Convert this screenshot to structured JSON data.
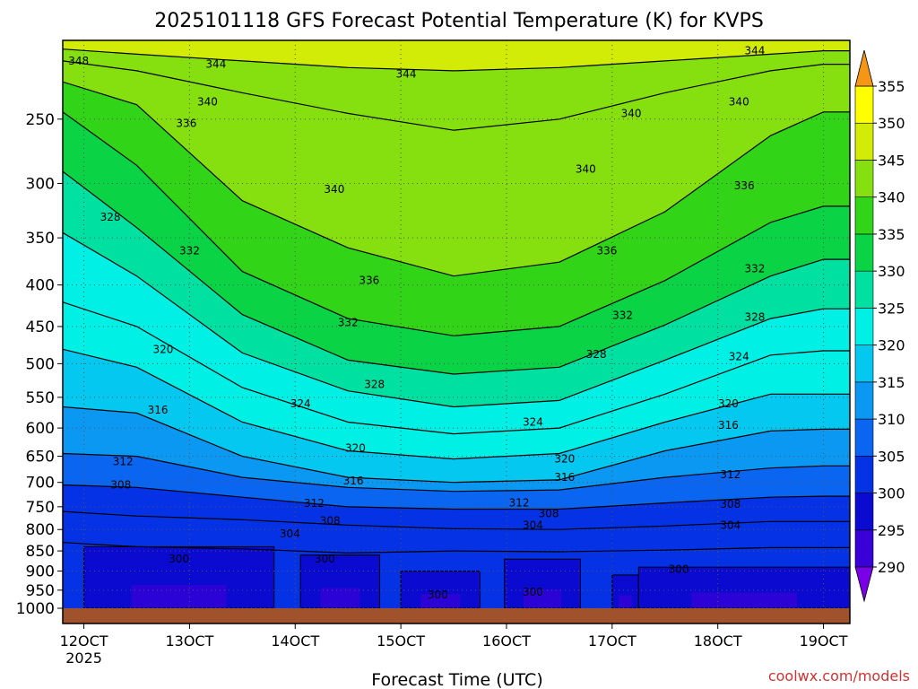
{
  "chart_data": {
    "type": "heatmap",
    "title": "2025101118 GFS Forecast Potential Temperature (K) for KVPS",
    "xlabel": "Forecast Time (UTC)",
    "ylabel": "",
    "source": "coolwx.com/models",
    "x_range": [
      11.8,
      19.25
    ],
    "y_scale": "log",
    "y_range_hpa": [
      1000,
      200
    ],
    "x_ticks": [
      {
        "value": 12,
        "label": "12OCT",
        "sublabel": "2025"
      },
      {
        "value": 13,
        "label": "13OCT"
      },
      {
        "value": 14,
        "label": "14OCT"
      },
      {
        "value": 15,
        "label": "15OCT"
      },
      {
        "value": 16,
        "label": "16OCT"
      },
      {
        "value": 17,
        "label": "17OCT"
      },
      {
        "value": 18,
        "label": "18OCT"
      },
      {
        "value": 19,
        "label": "19OCT"
      }
    ],
    "y_ticks": [
      {
        "value": 250,
        "label": "250"
      },
      {
        "value": 300,
        "label": "300"
      },
      {
        "value": 350,
        "label": "350"
      },
      {
        "value": 400,
        "label": "400"
      },
      {
        "value": 450,
        "label": "450"
      },
      {
        "value": 500,
        "label": "500"
      },
      {
        "value": 550,
        "label": "550"
      },
      {
        "value": 600,
        "label": "600"
      },
      {
        "value": 650,
        "label": "650"
      },
      {
        "value": 700,
        "label": "700"
      },
      {
        "value": 750,
        "label": "750"
      },
      {
        "value": 800,
        "label": "800"
      },
      {
        "value": 850,
        "label": "850"
      },
      {
        "value": 900,
        "label": "900"
      },
      {
        "value": 950,
        "label": "950"
      },
      {
        "value": 1000,
        "label": "1000"
      }
    ],
    "colorbar": {
      "levels": [
        290,
        295,
        300,
        305,
        310,
        315,
        320,
        325,
        330,
        335,
        340,
        345,
        350,
        355
      ],
      "labels": [
        "290",
        "295",
        "300",
        "305",
        "310",
        "315",
        "320",
        "325",
        "330",
        "335",
        "340",
        "345",
        "350",
        "355"
      ],
      "colors": [
        "#7a00e8",
        "#3a00d8",
        "#0a0ad0",
        "#0632e6",
        "#0a66f0",
        "#0a98f2",
        "#05c8f0",
        "#00f0e6",
        "#00e0a0",
        "#0ad446",
        "#32d418",
        "#86e010",
        "#d2ec08",
        "#ffff00",
        "#ffd200",
        "#f59614"
      ],
      "extend": "both"
    },
    "isentropes": [
      {
        "theta": 300,
        "pressure_hpa": [
          830,
          840,
          845,
          855,
          850,
          852,
          848,
          842,
          842,
          842
        ]
      },
      {
        "theta": 304,
        "pressure_hpa": [
          760,
          770,
          778,
          790,
          798,
          800,
          792,
          782,
          782,
          782
        ]
      },
      {
        "theta": 308,
        "pressure_hpa": [
          705,
          710,
          730,
          750,
          755,
          755,
          742,
          730,
          728,
          728
        ]
      },
      {
        "theta": 312,
        "pressure_hpa": [
          645,
          650,
          690,
          710,
          718,
          715,
          690,
          672,
          668,
          668
        ]
      },
      {
        "theta": 316,
        "pressure_hpa": [
          565,
          575,
          650,
          690,
          700,
          695,
          640,
          605,
          602,
          602
        ]
      },
      {
        "theta": 320,
        "pressure_hpa": [
          480,
          505,
          590,
          640,
          655,
          645,
          590,
          545,
          545,
          545
        ]
      },
      {
        "theta": 324,
        "pressure_hpa": [
          420,
          450,
          535,
          590,
          610,
          600,
          545,
          488,
          482,
          482
        ]
      },
      {
        "theta": 328,
        "pressure_hpa": [
          345,
          390,
          485,
          540,
          565,
          555,
          495,
          440,
          428,
          428
        ]
      },
      {
        "theta": 332,
        "pressure_hpa": [
          290,
          340,
          435,
          495,
          515,
          505,
          448,
          390,
          372,
          372
        ]
      },
      {
        "theta": 336,
        "pressure_hpa": [
          245,
          285,
          385,
          440,
          462,
          450,
          395,
          335,
          320,
          320
        ]
      },
      {
        "theta": 340,
        "pressure_hpa": [
          225,
          240,
          315,
          360,
          390,
          375,
          325,
          262,
          245,
          245
        ]
      },
      {
        "theta": 344,
        "pressure_hpa": [
          212,
          218,
          232,
          246,
          258,
          250,
          232,
          218,
          214,
          214
        ]
      },
      {
        "theta": 348,
        "pressure_hpa": [
          205,
          208,
          212,
          216,
          218,
          216,
          212,
          208,
          206,
          206
        ]
      }
    ],
    "isentrope_times": [
      11.8,
      12.5,
      13.5,
      14.5,
      15.5,
      16.5,
      17.5,
      18.5,
      19.0,
      19.25
    ],
    "contour_labels": [
      {
        "text": "348",
        "x": 11.95,
        "p": 212
      },
      {
        "text": "344",
        "x": 13.25,
        "p": 214
      },
      {
        "text": "344",
        "x": 15.05,
        "p": 220
      },
      {
        "text": "344",
        "x": 18.35,
        "p": 206
      },
      {
        "text": "340",
        "x": 13.17,
        "p": 238
      },
      {
        "text": "336",
        "x": 12.97,
        "p": 253
      },
      {
        "text": "340",
        "x": 17.18,
        "p": 246
      },
      {
        "text": "340",
        "x": 18.2,
        "p": 238
      },
      {
        "text": "340",
        "x": 16.75,
        "p": 288
      },
      {
        "text": "340",
        "x": 14.37,
        "p": 305
      },
      {
        "text": "336",
        "x": 18.25,
        "p": 302
      },
      {
        "text": "328",
        "x": 12.25,
        "p": 330
      },
      {
        "text": "332",
        "x": 13.0,
        "p": 363
      },
      {
        "text": "336",
        "x": 16.95,
        "p": 363
      },
      {
        "text": "336",
        "x": 14.7,
        "p": 395
      },
      {
        "text": "332",
        "x": 18.35,
        "p": 382
      },
      {
        "text": "332",
        "x": 14.5,
        "p": 445
      },
      {
        "text": "332",
        "x": 17.1,
        "p": 436
      },
      {
        "text": "328",
        "x": 18.35,
        "p": 438
      },
      {
        "text": "320",
        "x": 12.75,
        "p": 480
      },
      {
        "text": "328",
        "x": 16.85,
        "p": 487
      },
      {
        "text": "324",
        "x": 18.2,
        "p": 490
      },
      {
        "text": "328",
        "x": 14.75,
        "p": 530
      },
      {
        "text": "324",
        "x": 14.05,
        "p": 560
      },
      {
        "text": "316",
        "x": 12.7,
        "p": 570
      },
      {
        "text": "320",
        "x": 18.1,
        "p": 560
      },
      {
        "text": "324",
        "x": 16.25,
        "p": 590
      },
      {
        "text": "316",
        "x": 18.1,
        "p": 595
      },
      {
        "text": "320",
        "x": 14.57,
        "p": 635
      },
      {
        "text": "320",
        "x": 16.55,
        "p": 655
      },
      {
        "text": "312",
        "x": 12.37,
        "p": 660
      },
      {
        "text": "316",
        "x": 14.55,
        "p": 697
      },
      {
        "text": "316",
        "x": 16.55,
        "p": 690
      },
      {
        "text": "312",
        "x": 18.12,
        "p": 685
      },
      {
        "text": "308",
        "x": 12.35,
        "p": 705
      },
      {
        "text": "312",
        "x": 14.18,
        "p": 743
      },
      {
        "text": "312",
        "x": 16.12,
        "p": 742
      },
      {
        "text": "308",
        "x": 16.4,
        "p": 765
      },
      {
        "text": "308",
        "x": 18.12,
        "p": 745
      },
      {
        "text": "308",
        "x": 14.33,
        "p": 780
      },
      {
        "text": "304",
        "x": 16.25,
        "p": 790
      },
      {
        "text": "304",
        "x": 18.12,
        "p": 790
      },
      {
        "text": "304",
        "x": 13.95,
        "p": 810
      },
      {
        "text": "300",
        "x": 12.9,
        "p": 870
      },
      {
        "text": "300",
        "x": 14.28,
        "p": 870
      },
      {
        "text": "300",
        "x": 17.63,
        "p": 895
      },
      {
        "text": "300",
        "x": 15.35,
        "p": 962
      },
      {
        "text": "300",
        "x": 16.25,
        "p": 955
      }
    ],
    "cold_pools": [
      {
        "x": [
          12.0,
          13.8
        ],
        "top_hpa": 840
      },
      {
        "x": [
          14.05,
          14.8
        ],
        "top_hpa": 860
      },
      {
        "x": [
          15.0,
          15.75
        ],
        "top_hpa": 900
      },
      {
        "x": [
          15.98,
          16.7
        ],
        "top_hpa": 870
      },
      {
        "x": [
          17.0,
          17.25
        ],
        "top_hpa": 910
      },
      {
        "x": [
          17.25,
          19.25
        ],
        "top_hpa": 890
      }
    ]
  }
}
